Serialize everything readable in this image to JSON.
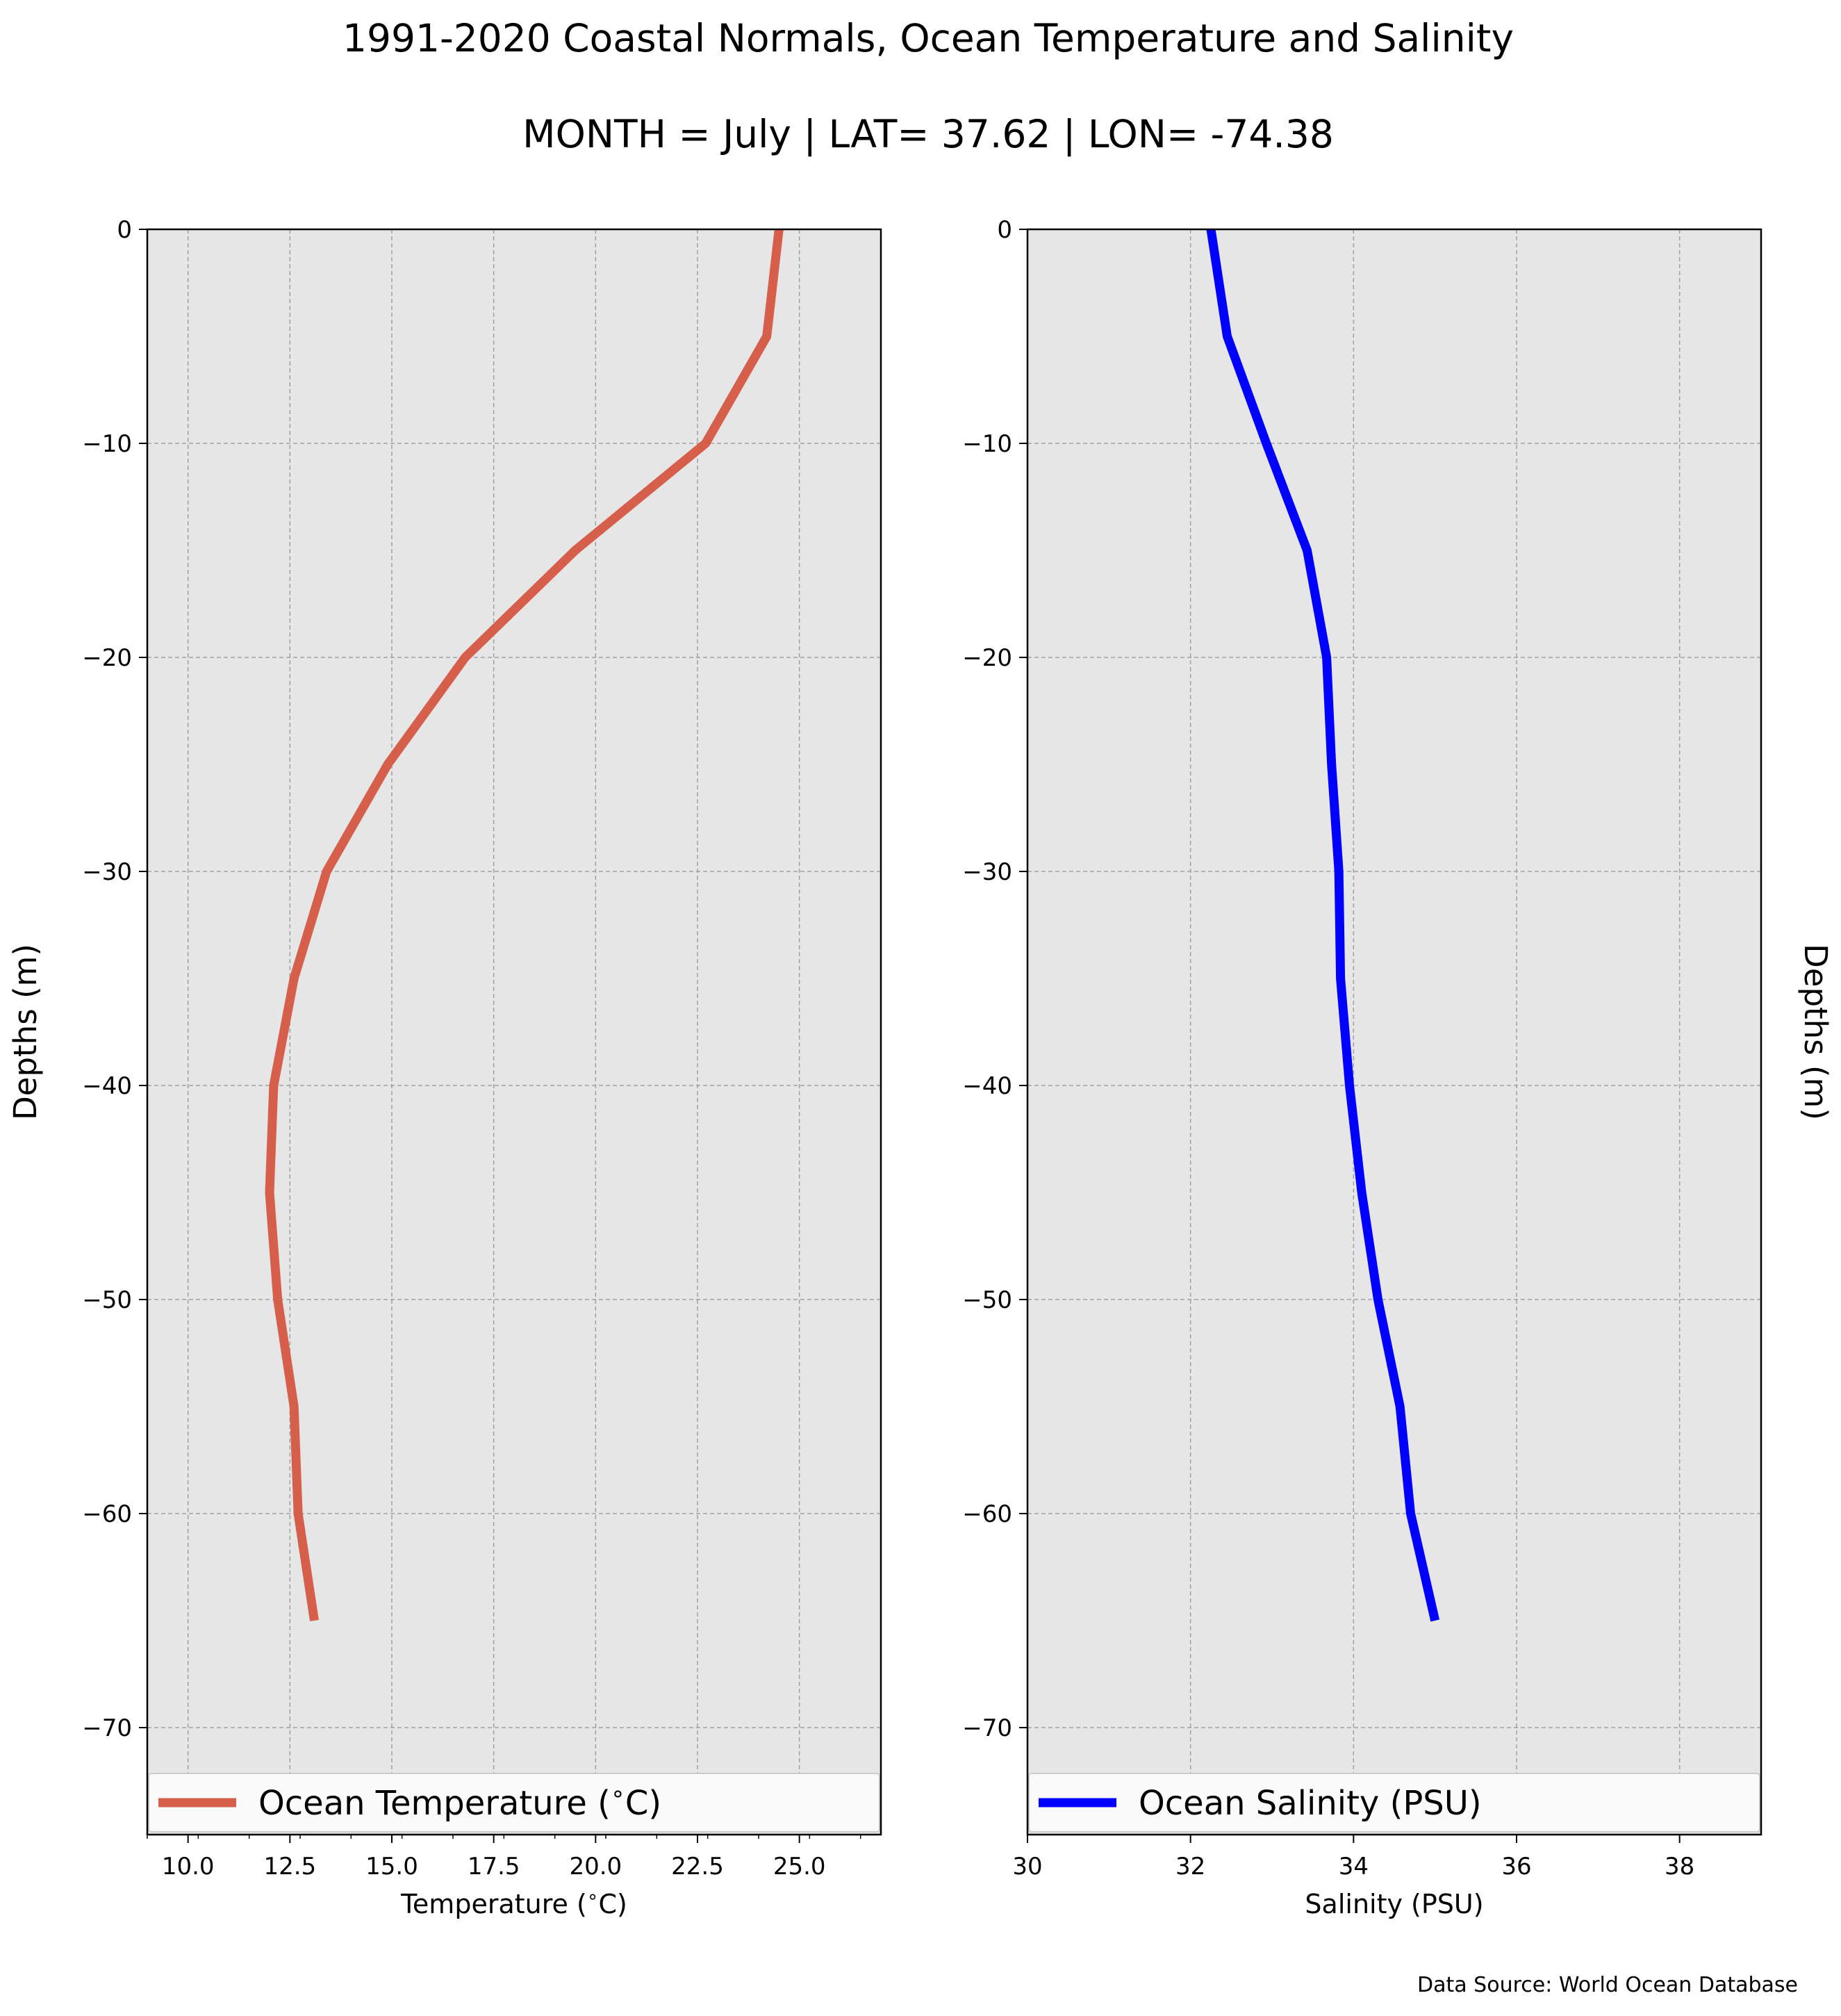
{
  "title": "1991-2020 Coastal Normals, Ocean Temperature and Salinity",
  "subtitle": "MONTH = July | LAT= 37.62 | LON= -74.38",
  "source": "Data Source: World Ocean Database",
  "colors": {
    "panel_bg": "#e6e6e6",
    "temperature": "#d65f4c",
    "salinity": "#0000ff",
    "grid": "#a0a0a0"
  },
  "chart_data": [
    {
      "type": "line",
      "orientation": "depth-profile",
      "xlabel": "Temperature ($^\\circ$C)",
      "ylabel": "Depths (m)",
      "xlim": [
        9.0,
        27.0
      ],
      "ylim": [
        -75,
        0
      ],
      "xticks": [
        10.0,
        12.5,
        15.0,
        17.5,
        20.0,
        22.5,
        25.0
      ],
      "xtick_labels": [
        "10.0",
        "12.5",
        "15.0",
        "17.5",
        "20.0",
        "22.5",
        "25.0"
      ],
      "yticks": [
        0,
        -10,
        -20,
        -30,
        -40,
        -50,
        -60,
        -70
      ],
      "ytick_labels": [
        "0",
        "−10",
        "−20",
        "−30",
        "−40",
        "−50",
        "−60",
        "−70"
      ],
      "grid": true,
      "legend_position": "bottom",
      "series": [
        {
          "name": "Ocean Temperature ($^\\circ$C)",
          "color": "#d65f4c",
          "x": [
            24.5,
            24.2,
            22.7,
            19.5,
            16.8,
            14.9,
            13.4,
            12.6,
            12.1,
            12.0,
            12.2,
            12.6,
            12.7,
            13.1
          ],
          "y": [
            0,
            -5,
            -10,
            -15,
            -20,
            -25,
            -30,
            -35,
            -40,
            -45,
            -50,
            -55,
            -60,
            -65
          ]
        }
      ]
    },
    {
      "type": "line",
      "orientation": "depth-profile",
      "xlabel": "Salinity (PSU)",
      "ylabel": "Depths (m)",
      "xlim": [
        30,
        39
      ],
      "ylim": [
        -75,
        0
      ],
      "xticks": [
        30,
        32,
        34,
        36,
        38
      ],
      "xtick_labels": [
        "30",
        "32",
        "34",
        "36",
        "38"
      ],
      "yticks": [
        0,
        -10,
        -20,
        -30,
        -40,
        -50,
        -60,
        -70
      ],
      "ytick_labels": [
        "0",
        "−10",
        "−20",
        "−30",
        "−40",
        "−50",
        "−60",
        "−70"
      ],
      "grid": true,
      "legend_position": "bottom",
      "series": [
        {
          "name": "Ocean Salinity (PSU)",
          "color": "#0000ff",
          "x": [
            32.25,
            32.45,
            32.93,
            33.43,
            33.67,
            33.73,
            33.82,
            33.84,
            33.95,
            34.1,
            34.3,
            34.57,
            34.7,
            35.0
          ],
          "y": [
            0,
            -5,
            -10,
            -15,
            -20,
            -25,
            -30,
            -35,
            -40,
            -45,
            -50,
            -55,
            -60,
            -65
          ]
        }
      ]
    }
  ]
}
